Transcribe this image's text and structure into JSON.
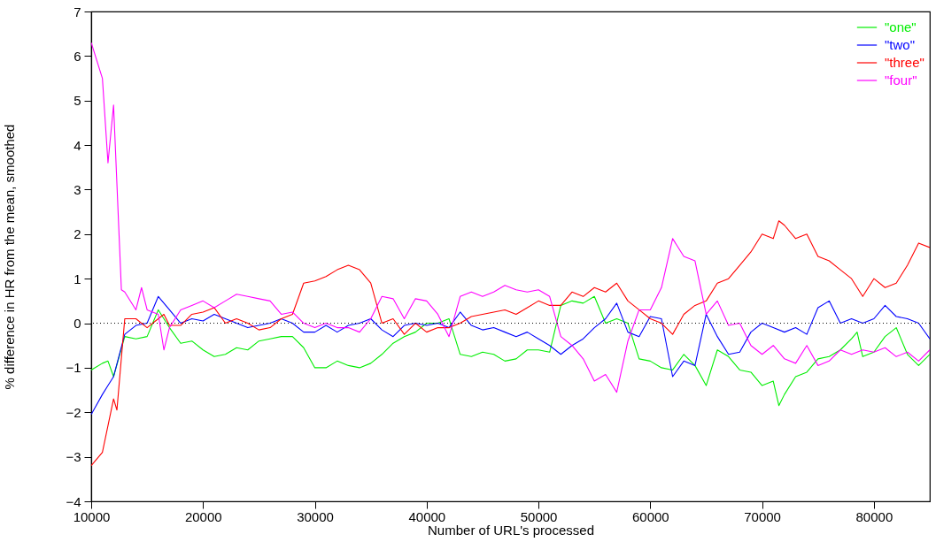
{
  "chart_data": {
    "type": "line",
    "xlabel": "Number of URL's processed",
    "ylabel": "% difference in HR from the mean, smoothed",
    "xlim": [
      10000,
      85000
    ],
    "xticks": [
      10000,
      20000,
      30000,
      40000,
      50000,
      60000,
      70000,
      80000
    ],
    "ylim": [
      -4,
      7
    ],
    "yticks": [
      -4,
      -3,
      -2,
      -1,
      0,
      1,
      2,
      3,
      4,
      5,
      6,
      7
    ],
    "grid": false,
    "legend": "top right",
    "line_style": "solid",
    "marker": "none",
    "ref_lines": [
      {
        "axis": "y",
        "value": 0,
        "color": "#000000",
        "line_style": "dotted"
      }
    ],
    "series": [
      {
        "name": "\"one\"",
        "color": "#00ee00",
        "x": [
          10000,
          11000,
          11500,
          12000,
          13000,
          14000,
          15000,
          16000,
          17000,
          18000,
          19000,
          20000,
          21000,
          22000,
          23000,
          24000,
          25000,
          26000,
          27000,
          28000,
          29000,
          30000,
          31000,
          32000,
          33000,
          34000,
          35000,
          36000,
          37000,
          38000,
          39000,
          40000,
          41000,
          42000,
          43000,
          44000,
          45000,
          46000,
          47000,
          48000,
          49000,
          50000,
          51000,
          52000,
          53000,
          54000,
          55000,
          56000,
          57000,
          58000,
          59000,
          60000,
          61000,
          62000,
          63000,
          64000,
          65000,
          66000,
          67000,
          68000,
          69000,
          70000,
          71000,
          71500,
          72000,
          73000,
          74000,
          75000,
          76000,
          77000,
          78000,
          78500,
          79000,
          80000,
          81000,
          82000,
          83000,
          84000,
          85000
        ],
        "values": [
          -1.05,
          -0.9,
          -0.85,
          -1.2,
          -0.3,
          -0.35,
          -0.3,
          0.3,
          -0.1,
          -0.45,
          -0.4,
          -0.6,
          -0.75,
          -0.7,
          -0.55,
          -0.6,
          -0.4,
          -0.35,
          -0.3,
          -0.3,
          -0.55,
          -1.0,
          -1.0,
          -0.85,
          -0.95,
          -1.0,
          -0.9,
          -0.7,
          -0.45,
          -0.3,
          -0.2,
          0.0,
          0.0,
          0.1,
          -0.7,
          -0.75,
          -0.65,
          -0.7,
          -0.85,
          -0.8,
          -0.6,
          -0.6,
          -0.65,
          0.4,
          0.5,
          0.45,
          0.6,
          0.0,
          0.1,
          0.0,
          -0.8,
          -0.85,
          -1.0,
          -1.05,
          -0.7,
          -0.95,
          -1.4,
          -0.6,
          -0.75,
          -1.05,
          -1.1,
          -1.4,
          -1.3,
          -1.85,
          -1.6,
          -1.2,
          -1.1,
          -0.8,
          -0.75,
          -0.6,
          -0.35,
          -0.2,
          -0.75,
          -0.65,
          -0.3,
          -0.1,
          -0.7,
          -0.95,
          -0.7
        ]
      },
      {
        "name": "\"two\"",
        "color": "#0000ff",
        "x": [
          10000,
          11000,
          11500,
          12000,
          13000,
          14000,
          15000,
          16000,
          17000,
          18000,
          19000,
          20000,
          21000,
          22000,
          23000,
          24000,
          25000,
          26000,
          27000,
          28000,
          29000,
          30000,
          31000,
          32000,
          33000,
          34000,
          35000,
          36000,
          37000,
          38000,
          39000,
          40000,
          41000,
          42000,
          43000,
          44000,
          45000,
          46000,
          47000,
          48000,
          49000,
          50000,
          51000,
          52000,
          53000,
          54000,
          55000,
          56000,
          57000,
          58000,
          59000,
          60000,
          61000,
          62000,
          63000,
          64000,
          65000,
          66000,
          67000,
          68000,
          69000,
          70000,
          71000,
          72000,
          73000,
          74000,
          75000,
          76000,
          77000,
          78000,
          79000,
          80000,
          81000,
          82000,
          83000,
          84000,
          85000
        ],
        "values": [
          -2.05,
          -1.6,
          -1.4,
          -1.2,
          -0.25,
          -0.05,
          0.0,
          0.6,
          0.3,
          0.0,
          0.1,
          0.05,
          0.2,
          0.1,
          0.0,
          -0.1,
          -0.05,
          0.0,
          0.1,
          0.0,
          -0.2,
          -0.2,
          -0.05,
          -0.2,
          -0.05,
          0.0,
          0.1,
          -0.15,
          -0.3,
          -0.05,
          0.0,
          -0.05,
          0.0,
          -0.1,
          0.25,
          -0.05,
          -0.15,
          -0.1,
          -0.2,
          -0.3,
          -0.2,
          -0.35,
          -0.5,
          -0.7,
          -0.5,
          -0.35,
          -0.1,
          0.1,
          0.45,
          -0.2,
          -0.3,
          0.15,
          0.1,
          -1.2,
          -0.85,
          -0.95,
          0.2,
          -0.3,
          -0.7,
          -0.65,
          -0.2,
          0.0,
          -0.1,
          -0.2,
          -0.1,
          -0.25,
          0.35,
          0.5,
          0.0,
          0.1,
          0.0,
          0.1,
          0.4,
          0.15,
          0.1,
          0.0,
          -0.35
        ]
      },
      {
        "name": "\"three\"",
        "color": "#ff0000",
        "x": [
          10000,
          11000,
          11500,
          12000,
          12300,
          13000,
          14000,
          15000,
          16000,
          16500,
          17000,
          18000,
          19000,
          20000,
          21000,
          22000,
          23000,
          24000,
          25000,
          26000,
          27000,
          28000,
          29000,
          30000,
          31000,
          32000,
          33000,
          34000,
          35000,
          36000,
          37000,
          38000,
          39000,
          40000,
          41000,
          42000,
          43000,
          44000,
          45000,
          46000,
          47000,
          48000,
          49000,
          50000,
          51000,
          52000,
          53000,
          54000,
          55000,
          56000,
          57000,
          58000,
          59000,
          60000,
          61000,
          62000,
          63000,
          64000,
          65000,
          66000,
          67000,
          68000,
          69000,
          70000,
          71000,
          71500,
          72000,
          73000,
          74000,
          75000,
          76000,
          77000,
          78000,
          79000,
          80000,
          81000,
          82000,
          83000,
          84000,
          85000
        ],
        "values": [
          -3.2,
          -2.9,
          -2.3,
          -1.7,
          -1.95,
          0.1,
          0.1,
          -0.1,
          0.1,
          0.2,
          -0.05,
          -0.05,
          0.2,
          0.25,
          0.35,
          0.0,
          0.1,
          0.0,
          -0.15,
          -0.1,
          0.1,
          0.2,
          0.9,
          0.95,
          1.05,
          1.2,
          1.3,
          1.2,
          0.9,
          0.0,
          0.1,
          -0.25,
          0.0,
          -0.2,
          -0.1,
          -0.1,
          0.0,
          0.15,
          0.2,
          0.25,
          0.3,
          0.2,
          0.35,
          0.5,
          0.4,
          0.4,
          0.7,
          0.6,
          0.8,
          0.7,
          0.9,
          0.5,
          0.3,
          0.1,
          0.0,
          -0.25,
          0.2,
          0.4,
          0.5,
          0.9,
          1.0,
          1.3,
          1.6,
          2.0,
          1.9,
          2.3,
          2.2,
          1.9,
          2.0,
          1.5,
          1.4,
          1.2,
          1.0,
          0.6,
          1.0,
          0.8,
          0.9,
          1.3,
          1.8,
          1.7
        ]
      },
      {
        "name": "\"four\"",
        "color": "#ff00ff",
        "x": [
          10000,
          11000,
          11500,
          12000,
          12700,
          13000,
          14000,
          14500,
          15000,
          16000,
          16500,
          17000,
          18000,
          19000,
          20000,
          21000,
          22000,
          23000,
          24000,
          25000,
          26000,
          27000,
          28000,
          29000,
          30000,
          31000,
          32000,
          33000,
          34000,
          35000,
          36000,
          37000,
          38000,
          39000,
          40000,
          41000,
          42000,
          43000,
          44000,
          45000,
          46000,
          47000,
          48000,
          49000,
          50000,
          51000,
          52000,
          53000,
          54000,
          55000,
          56000,
          57000,
          58000,
          59000,
          60000,
          61000,
          62000,
          63000,
          64000,
          65000,
          66000,
          67000,
          68000,
          69000,
          70000,
          71000,
          72000,
          73000,
          74000,
          75000,
          76000,
          77000,
          78000,
          79000,
          80000,
          81000,
          82000,
          83000,
          84000,
          85000
        ],
        "values": [
          6.3,
          5.5,
          3.6,
          4.9,
          0.75,
          0.7,
          0.3,
          0.8,
          0.3,
          0.2,
          -0.6,
          -0.1,
          0.3,
          0.4,
          0.5,
          0.35,
          0.5,
          0.65,
          0.6,
          0.55,
          0.5,
          0.2,
          0.25,
          0.0,
          -0.1,
          0.0,
          -0.1,
          -0.1,
          -0.2,
          0.1,
          0.6,
          0.55,
          0.1,
          0.55,
          0.5,
          0.2,
          -0.3,
          0.6,
          0.7,
          0.6,
          0.7,
          0.85,
          0.75,
          0.7,
          0.75,
          0.6,
          -0.3,
          -0.5,
          -0.8,
          -1.3,
          -1.15,
          -1.55,
          -0.4,
          0.3,
          0.3,
          0.8,
          1.9,
          1.5,
          1.4,
          0.2,
          0.5,
          -0.05,
          0.0,
          -0.5,
          -0.7,
          -0.5,
          -0.8,
          -0.9,
          -0.5,
          -0.95,
          -0.85,
          -0.6,
          -0.7,
          -0.6,
          -0.65,
          -0.55,
          -0.75,
          -0.65,
          -0.85,
          -0.6
        ]
      }
    ]
  }
}
